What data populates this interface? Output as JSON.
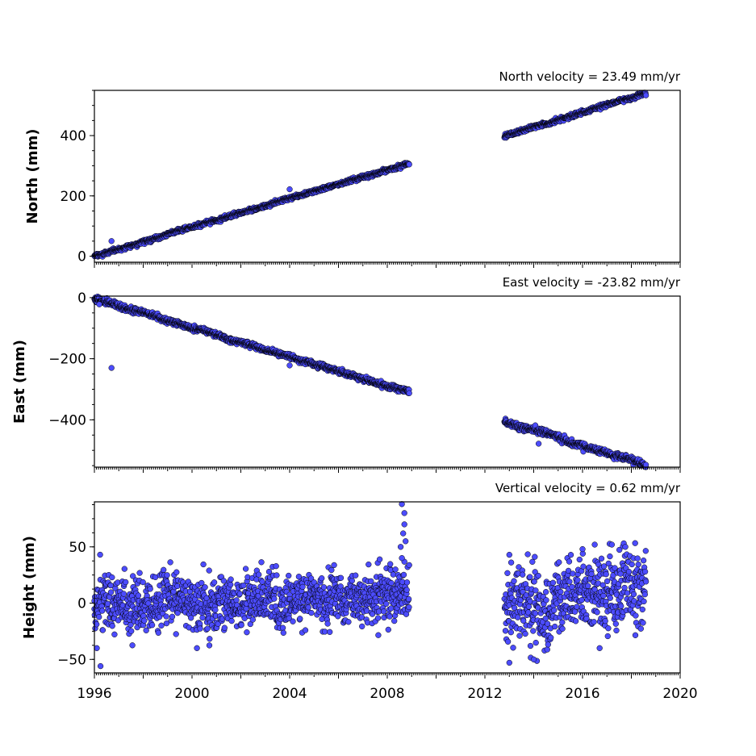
{
  "chart_data": [
    {
      "type": "scatter",
      "id": "north",
      "ylabel": "North (mm)",
      "annotation": "North velocity = 23.49 mm/yr",
      "xlim": [
        1996,
        2020
      ],
      "ylim": [
        -20,
        550
      ],
      "yticks": [
        0,
        200,
        400
      ],
      "ytick_labels": [
        "0",
        "200",
        "400"
      ],
      "marker_color": "#4c4cff",
      "edge_color": "#000000",
      "segments": [
        {
          "start": 1996.0,
          "end": 2008.9,
          "y_start": 0,
          "y_end": 308,
          "noise": 3
        },
        {
          "start": 2012.8,
          "end": 2018.6,
          "y_start": 398,
          "y_end": 540,
          "noise": 3
        }
      ],
      "outliers": [
        [
          1996.7,
          50
        ],
        [
          2004.0,
          222
        ]
      ]
    },
    {
      "type": "scatter",
      "id": "east",
      "ylabel": "East (mm)",
      "annotation": "East velocity = -23.82 mm/yr",
      "xlim": [
        1996,
        2020
      ],
      "ylim": [
        -555,
        5
      ],
      "yticks": [
        0,
        -200,
        -400
      ],
      "ytick_labels": [
        "0",
        "−200",
        "−400"
      ],
      "marker_color": "#4c4cff",
      "edge_color": "#000000",
      "segments": [
        {
          "start": 1996.0,
          "end": 2008.9,
          "y_start": -3,
          "y_end": -310,
          "noise": 4
        },
        {
          "start": 2012.8,
          "end": 2018.6,
          "y_start": -405,
          "y_end": -548,
          "noise": 5
        }
      ],
      "outliers": [
        [
          1996.7,
          -230
        ],
        [
          1996.2,
          -22
        ],
        [
          2004.0,
          -222
        ],
        [
          2014.2,
          -478
        ]
      ]
    },
    {
      "type": "scatter",
      "id": "height",
      "ylabel": "Height (mm)",
      "annotation": "Vertical velocity = 0.62 mm/yr",
      "xlim": [
        1996,
        2020
      ],
      "ylim": [
        -62,
        90
      ],
      "yticks": [
        -50,
        0,
        50
      ],
      "ytick_labels": [
        "−50",
        "0",
        "50"
      ],
      "xticks": [
        1996,
        2000,
        2004,
        2008,
        2012,
        2016,
        2020
      ],
      "xtick_labels": [
        "1996",
        "2000",
        "2004",
        "2008",
        "2012",
        "2016",
        "2020"
      ],
      "marker_color": "#4c4cff",
      "edge_color": "#000000",
      "segments": [
        {
          "start": 1996.0,
          "end": 2008.9,
          "y_start": -4,
          "y_end": 3,
          "noise": 12
        },
        {
          "start": 2012.8,
          "end": 2018.6,
          "y_start": -5,
          "y_end": 14,
          "noise": 17
        }
      ],
      "outliers": [
        [
          1996.0,
          2
        ],
        [
          1996.1,
          -40
        ],
        [
          1996.25,
          -56
        ],
        [
          2000.7,
          29
        ],
        [
          2000.2,
          -40
        ],
        [
          2008.6,
          88
        ],
        [
          2008.7,
          80
        ],
        [
          2008.65,
          62
        ],
        [
          2008.55,
          50
        ],
        [
          2008.7,
          70
        ],
        [
          2008.6,
          40
        ],
        [
          2008.75,
          55
        ],
        [
          2013.0,
          43
        ],
        [
          2013.0,
          -53
        ],
        [
          2016.0,
          48
        ],
        [
          2016.5,
          52
        ],
        [
          2017.2,
          52
        ],
        [
          2014.0,
          -50
        ],
        [
          2016.7,
          -40
        ]
      ]
    }
  ]
}
